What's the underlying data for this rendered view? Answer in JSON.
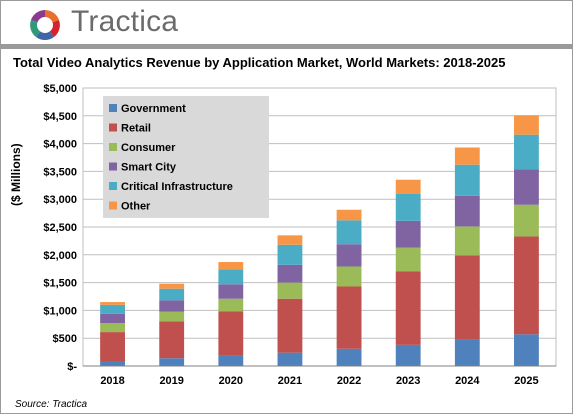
{
  "brand": {
    "name": "Tractica"
  },
  "chart_data": {
    "type": "bar",
    "stacked": true,
    "title": "Total Video Analytics Revenue by Application Market, World Markets: 2018-2025",
    "ylabel": "($ Millions)",
    "xlabel": "",
    "ylim": [
      0,
      5000
    ],
    "yticks": [
      0,
      500,
      1000,
      1500,
      2000,
      2500,
      3000,
      3500,
      4000,
      4500,
      5000
    ],
    "ytick_labels": [
      "$-",
      "$500",
      "$1,000",
      "$1,500",
      "$2,000",
      "$2,500",
      "$3,000",
      "$3,500",
      "$4,000",
      "$4,500",
      "$5,000"
    ],
    "grid": true,
    "legend_position": "top-left",
    "categories": [
      "2018",
      "2019",
      "2020",
      "2021",
      "2022",
      "2023",
      "2024",
      "2025"
    ],
    "series": [
      {
        "name": "Government",
        "color": "#4f81bd",
        "values": [
          90,
          140,
          190,
          240,
          310,
          380,
          470,
          570
        ]
      },
      {
        "name": "Retail",
        "color": "#c0504d",
        "values": [
          520,
          660,
          790,
          970,
          1120,
          1320,
          1520,
          1760
        ]
      },
      {
        "name": "Consumer",
        "color": "#9bbb59",
        "values": [
          160,
          180,
          230,
          290,
          360,
          430,
          520,
          570
        ]
      },
      {
        "name": "Smart City",
        "color": "#8064a2",
        "values": [
          170,
          200,
          260,
          320,
          400,
          480,
          550,
          640
        ]
      },
      {
        "name": "Critical Infrastructure",
        "color": "#4bacc6",
        "values": [
          160,
          210,
          270,
          360,
          430,
          490,
          560,
          620
        ]
      },
      {
        "name": "Other",
        "color": "#f79646",
        "values": [
          50,
          90,
          130,
          170,
          190,
          250,
          310,
          350
        ]
      }
    ]
  },
  "source": "Source: Tractica"
}
